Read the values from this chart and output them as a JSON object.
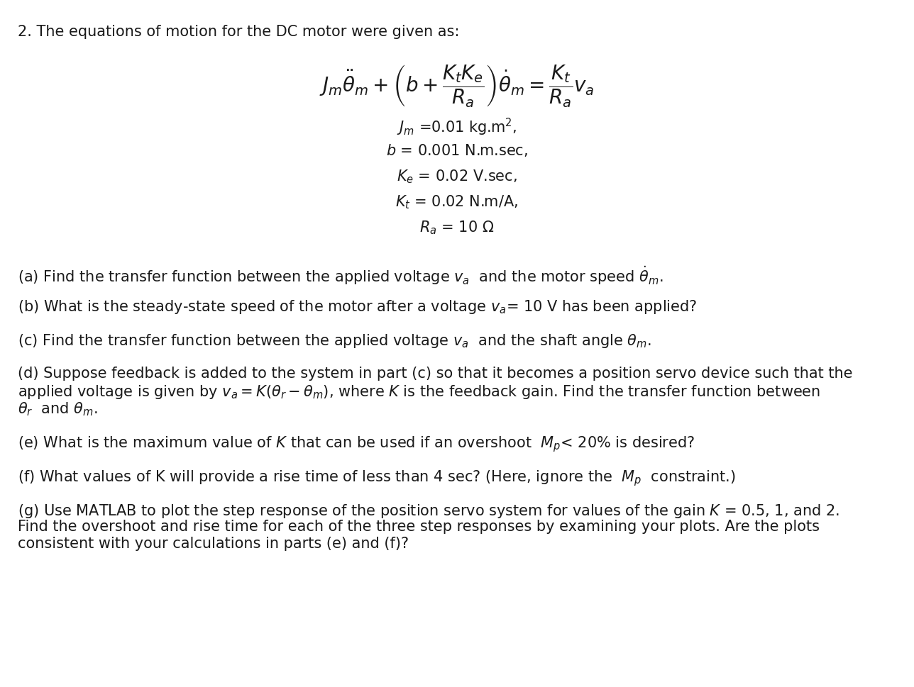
{
  "background_color": "#ffffff",
  "text_color": "#1a1a1a",
  "figsize": [
    12.88,
    9.7
  ],
  "dpi": 100,
  "line1": "2. The equations of motion for the DC motor were given as:",
  "eq_main": "$J_m\\ddot{\\theta}_m + \\left(b + \\dfrac{K_t K_e}{R_a}\\right)\\dot{\\theta}_m = \\dfrac{K_t}{R_a}v_a$",
  "params": [
    "$J_m$ =0.01 kg.m$^2$,",
    "$b$ = 0.001 N.m.sec,",
    "$K_e$ = 0.02 V.sec,",
    "$K_t$ = 0.02 N.m/A,",
    "$R_a$ = 10 $\\Omega$"
  ],
  "part_a": "(a) Find the transfer function between the applied voltage $v_a$  and the motor speed $\\dot{\\theta}_m$.",
  "part_b": "(b) What is the steady-state speed of the motor after a voltage $v_a$= 10 V has been applied?",
  "part_c": "(c) Find the transfer function between the applied voltage $v_a$  and the shaft angle $\\theta_m$.",
  "part_d1": "(d) Suppose feedback is added to the system in part (c) so that it becomes a position servo device such that the",
  "part_d2": "applied voltage is given by $v_a = K(\\theta_r - \\theta_m)$, where $K$ is the feedback gain. Find the transfer function between",
  "part_d3": "$\\theta_r$  and $\\theta_m$.",
  "part_e": "(e) What is the maximum value of $K$ that can be used if an overshoot  $M_p$< 20% is desired?",
  "part_f": "(f) What values of K will provide a rise time of less than 4 sec? (Here, ignore the  $M_p$  constraint.)",
  "part_g1": "(g) Use MATLAB to plot the step response of the position servo system for values of the gain $K$ = 0.5, 1, and 2.",
  "part_g2": "Find the overshoot and rise time for each of the three step responses by examining your plots. Are the plots",
  "part_g3": "consistent with your calculations in parts (e) and (f)?",
  "fs_header": 15,
  "fs_eq": 20,
  "fs_param": 15,
  "fs_body": 15
}
